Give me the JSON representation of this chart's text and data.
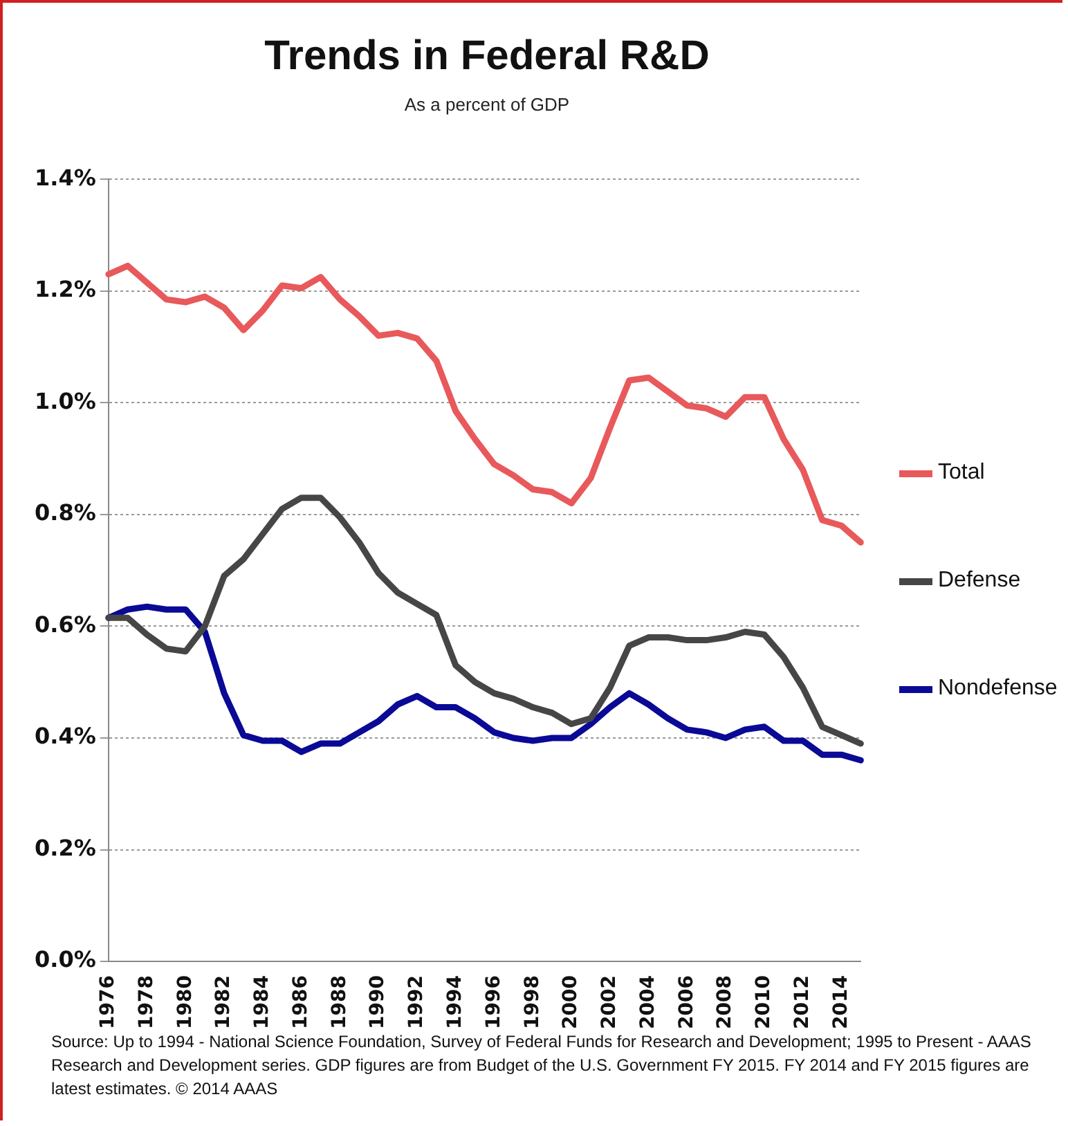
{
  "chart_data": {
    "type": "line",
    "title": "Trends in Federal R&D",
    "subtitle": "As a percent of GDP",
    "categories": [
      "1976",
      null,
      "1978",
      null,
      "1980",
      null,
      "1982",
      null,
      "1984",
      null,
      "1986",
      null,
      "1988",
      null,
      "1990",
      null,
      "1992",
      null,
      "1994",
      null,
      "1996",
      null,
      "1998",
      null,
      "2000",
      null,
      "2002",
      null,
      "2004",
      null,
      "2006",
      null,
      "2008",
      null,
      "2010",
      null,
      "2012",
      null,
      "2014",
      null
    ],
    "series": [
      {
        "name": "Total",
        "color": "#e8595b",
        "values": [
          1.23,
          1.245,
          1.215,
          1.185,
          1.18,
          1.19,
          1.17,
          1.13,
          1.165,
          1.21,
          1.205,
          1.225,
          1.185,
          1.155,
          1.12,
          1.125,
          1.115,
          1.075,
          0.985,
          0.935,
          0.89,
          0.87,
          0.845,
          0.84,
          0.82,
          0.865,
          0.955,
          1.04,
          1.045,
          1.02,
          0.995,
          0.99,
          0.975,
          1.01,
          1.01,
          0.935,
          0.88,
          0.79,
          0.78,
          0.75
        ]
      },
      {
        "name": "Defense",
        "color": "#464646",
        "values": [
          0.615,
          0.615,
          0.585,
          0.56,
          0.555,
          0.6,
          0.69,
          0.72,
          0.765,
          0.81,
          0.83,
          0.83,
          0.795,
          0.75,
          0.695,
          0.66,
          0.64,
          0.62,
          0.53,
          0.5,
          0.48,
          0.47,
          0.455,
          0.445,
          0.425,
          0.435,
          0.49,
          0.565,
          0.58,
          0.58,
          0.575,
          0.575,
          0.58,
          0.59,
          0.585,
          0.545,
          0.49,
          0.42,
          0.405,
          0.39
        ]
      },
      {
        "name": "Nondefense",
        "color": "#0a0a96",
        "values": [
          0.615,
          0.63,
          0.635,
          0.63,
          0.63,
          0.59,
          0.48,
          0.405,
          0.395,
          0.395,
          0.375,
          0.39,
          0.39,
          0.41,
          0.43,
          0.46,
          0.475,
          0.455,
          0.455,
          0.435,
          0.41,
          0.4,
          0.395,
          0.4,
          0.4,
          0.425,
          0.455,
          0.48,
          0.46,
          0.435,
          0.415,
          0.41,
          0.4,
          0.415,
          0.42,
          0.395,
          0.395,
          0.37,
          0.37,
          0.36
        ]
      }
    ],
    "ylim": [
      0,
      1.4
    ],
    "yticks": [
      {
        "value": 0,
        "label": "0.0%"
      },
      {
        "value": 0.2,
        "label": "0.2%"
      },
      {
        "value": 0.4,
        "label": "0.4%"
      },
      {
        "value": 0.6,
        "label": "0.6%"
      },
      {
        "value": 0.8,
        "label": "0.8%"
      },
      {
        "value": 1.0,
        "label": "1.0%"
      },
      {
        "value": 1.2,
        "label": "1.2%"
      },
      {
        "value": 1.4,
        "label": "1.4%"
      }
    ],
    "grid": "y",
    "legend": "right",
    "marker": "none",
    "line_style": "solid",
    "annotations": [
      "Source: Up to 1994 - National Science Foundation, Survey of Federal Funds for Research and Development; 1995 to Present - AAAS Research and Development series. GDP figures are from Budget of the U.S. Government FY 2015.  FY 2014 and FY 2015 figures are latest estimates. © 2014 AAAS"
    ]
  }
}
